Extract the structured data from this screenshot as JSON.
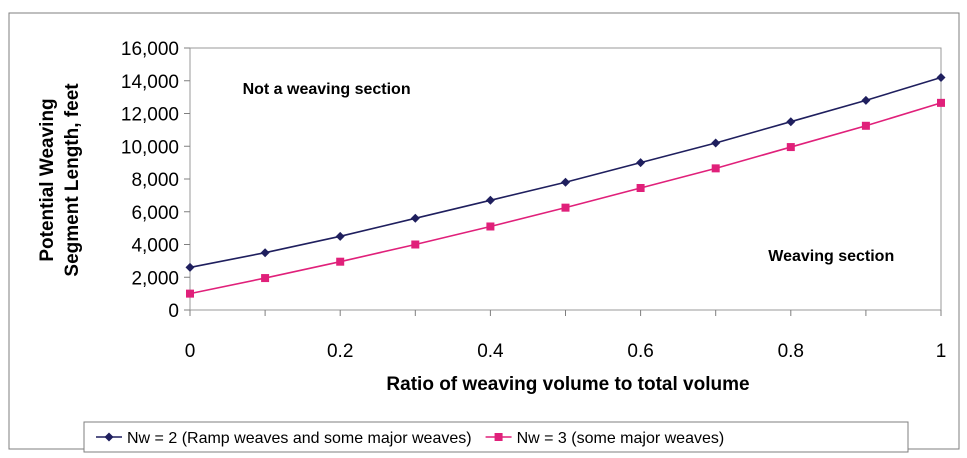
{
  "chart_data": {
    "type": "line",
    "title": "",
    "xlabel": "Ratio of weaving volume to total volume",
    "ylabel_line1": "Potential Weaving",
    "ylabel_line2": "Segment Length, feet",
    "xlim": [
      0,
      1
    ],
    "ylim": [
      0,
      16000
    ],
    "x": [
      0,
      0.1,
      0.2,
      0.3,
      0.4,
      0.5,
      0.6,
      0.7,
      0.8,
      0.9,
      1
    ],
    "x_ticks": [
      "0",
      "0.2",
      "0.4",
      "0.6",
      "0.8",
      "1"
    ],
    "x_tick_values": [
      0,
      0.2,
      0.4,
      0.6,
      0.8,
      1
    ],
    "y_ticks": [
      "0",
      "2,000",
      "4,000",
      "6,000",
      "8,000",
      "10,000",
      "12,000",
      "14,000",
      "16,000"
    ],
    "y_tick_values": [
      0,
      2000,
      4000,
      6000,
      8000,
      10000,
      12000,
      14000,
      16000
    ],
    "grid": false,
    "legend_position": "bottom",
    "series": [
      {
        "name": "Nw = 2 (Ramp weaves and some major weaves)",
        "color": "#1f1f5e",
        "marker": "diamond",
        "values": [
          2600,
          3500,
          4500,
          5600,
          6700,
          7800,
          9000,
          10200,
          11500,
          12800,
          14200
        ]
      },
      {
        "name": "Nw = 3 (some major weaves)",
        "color": "#e0207a",
        "marker": "square",
        "values": [
          1000,
          1950,
          2950,
          4000,
          5100,
          6250,
          7450,
          8650,
          9950,
          11250,
          12650
        ]
      }
    ],
    "annotations": [
      {
        "text": "Not a weaving section",
        "x": 0.07,
        "y": 13200
      },
      {
        "text": "Weaving section",
        "x": 0.77,
        "y": 3000
      }
    ]
  }
}
